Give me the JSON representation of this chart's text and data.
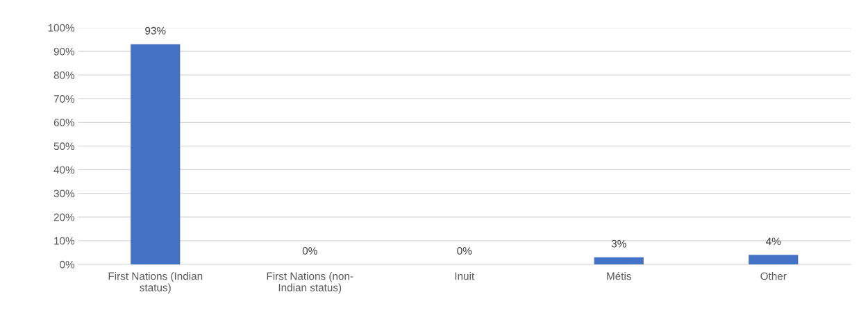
{
  "chart_data": {
    "type": "bar",
    "categories": [
      "First Nations (Indian\nstatus)",
      "First Nations (non-\nIndian status)",
      "Inuit",
      "Métis",
      "Other"
    ],
    "values": [
      93,
      0,
      0,
      3,
      4
    ],
    "value_labels": [
      "93%",
      "0%",
      "0%",
      "3%",
      "4%"
    ],
    "color": "#4472c4",
    "ylim": [
      0,
      100
    ],
    "yticks": [
      {
        "value": 0,
        "label": "0%"
      },
      {
        "value": 10,
        "label": "10%"
      },
      {
        "value": 20,
        "label": "20%"
      },
      {
        "value": 30,
        "label": "30%"
      },
      {
        "value": 40,
        "label": "40%"
      },
      {
        "value": 50,
        "label": "50%"
      },
      {
        "value": 60,
        "label": "60%"
      },
      {
        "value": 70,
        "label": "70%"
      },
      {
        "value": 80,
        "label": "80%"
      },
      {
        "value": 90,
        "label": "90%"
      },
      {
        "value": 100,
        "label": "100%"
      }
    ],
    "grid": "y",
    "legend": false
  }
}
